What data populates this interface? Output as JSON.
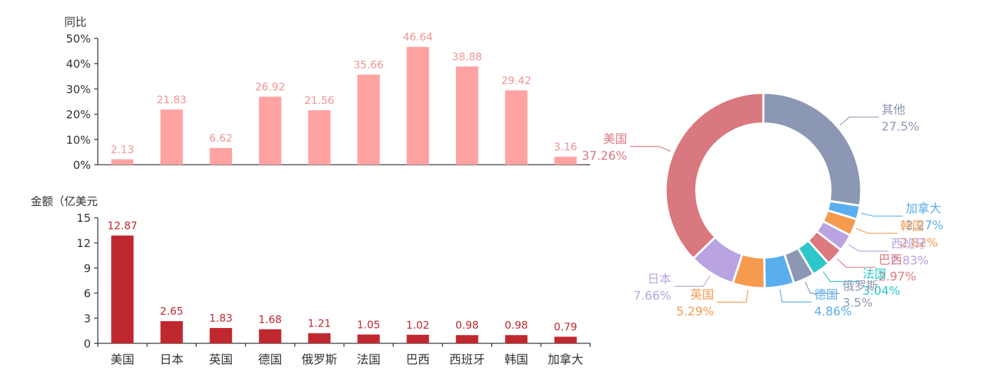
{
  "chart_data": [
    {
      "type": "bar",
      "ylabel": "同比",
      "categories": [
        "美国",
        "日本",
        "英国",
        "德国",
        "俄罗斯",
        "法国",
        "巴西",
        "西班牙",
        "韩国",
        "加拿大"
      ],
      "series": [
        {
          "values": [
            2.13,
            21.83,
            6.62,
            26.92,
            21.56,
            35.66,
            46.64,
            38.88,
            29.42,
            3.16
          ]
        }
      ],
      "data_labels": [
        "2.13",
        "21.83",
        "6.62",
        "26.92",
        "21.56",
        "35.66",
        "46.64",
        "38.88",
        "29.42",
        "3.16"
      ],
      "ylim": [
        0,
        50
      ],
      "yticks": [
        0,
        10,
        20,
        30,
        40,
        50
      ],
      "ytick_labels": [
        "0%",
        "10%",
        "20%",
        "30%",
        "40%",
        "50%"
      ],
      "color": "#ffa2a2",
      "label_color": "#f29595"
    },
    {
      "type": "bar",
      "ylabel": "金额（亿美元",
      "categories": [
        "美国",
        "日本",
        "英国",
        "德国",
        "俄罗斯",
        "法国",
        "巴西",
        "西班牙",
        "韩国",
        "加拿大"
      ],
      "series": [
        {
          "values": [
            12.87,
            2.65,
            1.83,
            1.68,
            1.21,
            1.05,
            1.02,
            0.98,
            0.98,
            0.79
          ]
        }
      ],
      "data_labels": [
        "12.87",
        "2.65",
        "1.83",
        "1.68",
        "1.21",
        "1.05",
        "1.02",
        "0.98",
        "0.98",
        "0.79"
      ],
      "ylim": [
        0,
        15
      ],
      "yticks": [
        0,
        3,
        6,
        9,
        12,
        15
      ],
      "ytick_labels": [
        "0",
        "3",
        "6",
        "9",
        "12",
        "15"
      ],
      "color": "#c0282f",
      "label_color": "#c0282f"
    },
    {
      "type": "pie",
      "donut": true,
      "slices": [
        {
          "name": "其他",
          "value": 27.5,
          "label": "27.5%",
          "color": "#8b97b3"
        },
        {
          "name": "加拿大",
          "value": 2.27,
          "label": "2.27%",
          "color": "#5baeee"
        },
        {
          "name": "韩国",
          "value": 2.82,
          "label": "2.82%",
          "color": "#f59a4e"
        },
        {
          "name": "西班牙",
          "value": 2.83,
          "label": "2.83%",
          "color": "#b9a3e0"
        },
        {
          "name": "巴西",
          "value": 2.97,
          "label": "2.97%",
          "color": "#dc7a80"
        },
        {
          "name": "法国",
          "value": 3.04,
          "label": "3.04%",
          "color": "#2ec7c9"
        },
        {
          "name": "俄罗斯",
          "value": 3.5,
          "label": "3.5%",
          "color": "#8b97b3"
        },
        {
          "name": "德国",
          "value": 4.86,
          "label": "4.86%",
          "color": "#5baeee"
        },
        {
          "name": "英国",
          "value": 5.29,
          "label": "5.29%",
          "color": "#f59a4e"
        },
        {
          "name": "日本",
          "value": 7.66,
          "label": "7.66%",
          "color": "#b9a3e0"
        },
        {
          "name": "美国",
          "value": 37.26,
          "label": "37.26%",
          "color": "#d9787e"
        }
      ]
    }
  ]
}
